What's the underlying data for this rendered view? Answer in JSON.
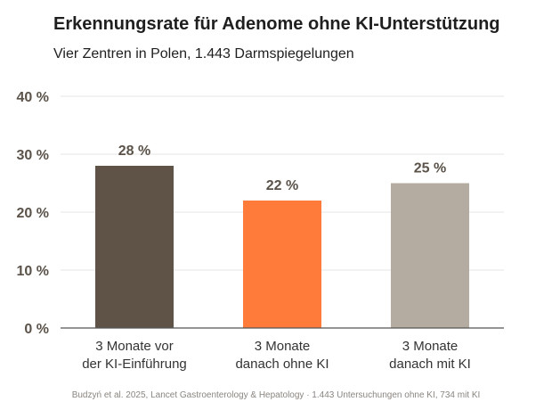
{
  "chart_data": {
    "type": "bar",
    "title": "Erkennungsrate für Adenome ohne KI-Unterstützung",
    "subtitle": "Vier Zentren in Polen, 1.443 Darmspiegelungen",
    "categories": [
      [
        "3 Monate vor",
        "der KI-Einführung"
      ],
      [
        "3 Monate",
        "danach ohne KI"
      ],
      [
        "3 Monate",
        "danach mit KI"
      ]
    ],
    "values": [
      28,
      22,
      25
    ],
    "value_labels": [
      "28 %",
      "22 %",
      "25 %"
    ],
    "ylim": [
      0,
      40
    ],
    "yticks": [
      0,
      10,
      20,
      30,
      40
    ],
    "ytick_labels": [
      "0 %",
      "10 %",
      "20 %",
      "30 %",
      "40 %"
    ],
    "colors": [
      "#5e5346",
      "#ff7b3a",
      "#b5aca1"
    ],
    "grid": true,
    "source": "Budzyń et al. 2025, Lancet Gastroenterology & Hepatology  · 1.443 Untersuchungen ohne KI, 734 mit KI"
  }
}
